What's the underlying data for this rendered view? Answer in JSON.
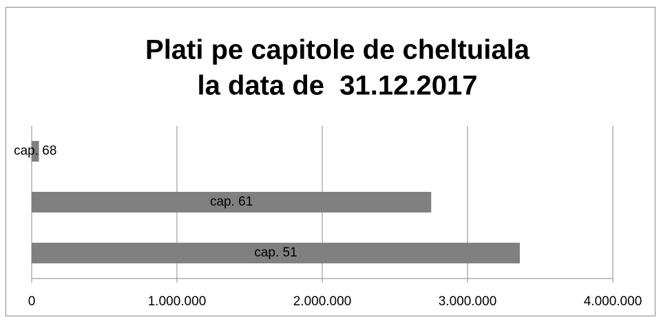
{
  "chart_data": {
    "type": "bar",
    "orientation": "horizontal",
    "title": [
      "Plati pe capitole de cheltuiala",
      "la data de  31.12.2017"
    ],
    "categories": [
      "cap. 51",
      "cap. 61",
      "cap. 68"
    ],
    "values": [
      3360000,
      2750000,
      50000
    ],
    "color": "#808080",
    "xlim": [
      0,
      4000000
    ],
    "xticks": [
      0,
      {
        "value": 1000000,
        "label": "1.000.000"
      },
      {
        "value": 2000000,
        "label": "2.000.000"
      },
      {
        "value": 3000000,
        "label": "3.000.000"
      },
      {
        "value": 4000000,
        "label": "4.000.000"
      }
    ],
    "grid": true
  }
}
